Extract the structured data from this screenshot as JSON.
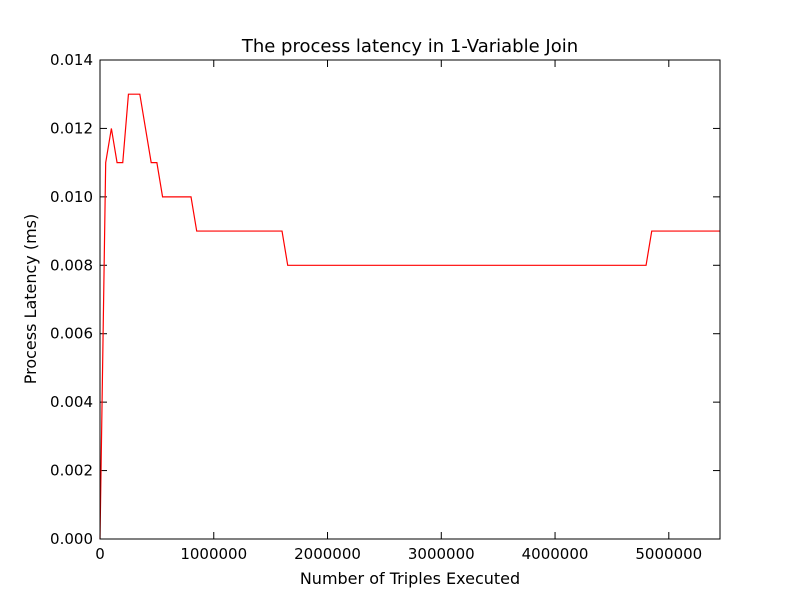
{
  "chart_data": {
    "type": "line",
    "title": "The process latency in 1-Variable Join",
    "xlabel": "Number of Triples Executed",
    "ylabel": "Process Latency (ms)",
    "xlim": [
      0,
      5450000
    ],
    "ylim": [
      0,
      0.014
    ],
    "x_ticks": [
      0,
      1000000,
      2000000,
      3000000,
      4000000,
      5000000
    ],
    "x_tick_labels": [
      "0",
      "1000000",
      "2000000",
      "3000000",
      "4000000",
      "5000000"
    ],
    "y_ticks": [
      0,
      0.002,
      0.004,
      0.006,
      0.008,
      0.01,
      0.012,
      0.014
    ],
    "y_tick_labels": [
      "0.000",
      "0.002",
      "0.004",
      "0.006",
      "0.008",
      "0.010",
      "0.012",
      "0.014"
    ],
    "grid": false,
    "series": [
      {
        "color": "#ff0000",
        "x": [
          0,
          50000,
          100000,
          150000,
          200000,
          250000,
          300000,
          350000,
          400000,
          450000,
          500000,
          550000,
          600000,
          650000,
          700000,
          750000,
          800000,
          850000,
          900000,
          1600000,
          1650000,
          1700000,
          4800000,
          4850000,
          5450000
        ],
        "y": [
          0,
          0.011,
          0.012,
          0.011,
          0.011,
          0.013,
          0.013,
          0.013,
          0.012,
          0.011,
          0.011,
          0.01,
          0.01,
          0.01,
          0.01,
          0.01,
          0.01,
          0.009,
          0.009,
          0.009,
          0.008,
          0.008,
          0.008,
          0.009,
          0.009
        ]
      }
    ]
  }
}
